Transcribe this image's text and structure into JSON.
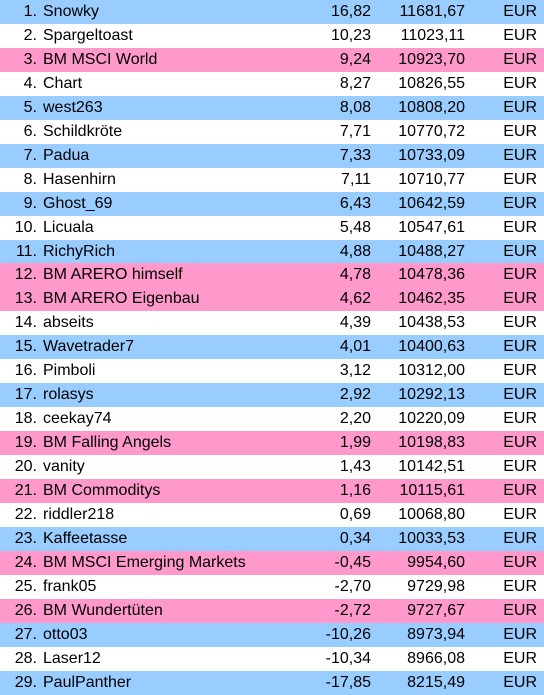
{
  "colors": {
    "blue": "#99CCFF",
    "white": "#FFFFFF",
    "pink": "#FF99CC"
  },
  "rows": [
    {
      "rank": "1.",
      "name": "Snowky",
      "pct": "16,82",
      "value": "11681,67",
      "currency": "EUR",
      "color": "blue"
    },
    {
      "rank": "2.",
      "name": "Spargeltoast",
      "pct": "10,23",
      "value": "11023,11",
      "currency": "EUR",
      "color": "white"
    },
    {
      "rank": "3.",
      "name": "BM MSCI World",
      "pct": "9,24",
      "value": "10923,70",
      "currency": "EUR",
      "color": "pink"
    },
    {
      "rank": "4.",
      "name": "Chart",
      "pct": "8,27",
      "value": "10826,55",
      "currency": "EUR",
      "color": "white"
    },
    {
      "rank": "5.",
      "name": "west263",
      "pct": "8,08",
      "value": "10808,20",
      "currency": "EUR",
      "color": "blue"
    },
    {
      "rank": "6.",
      "name": "Schildkröte",
      "pct": "7,71",
      "value": "10770,72",
      "currency": "EUR",
      "color": "white"
    },
    {
      "rank": "7.",
      "name": "Padua",
      "pct": "7,33",
      "value": "10733,09",
      "currency": "EUR",
      "color": "blue"
    },
    {
      "rank": "8.",
      "name": "Hasenhirn",
      "pct": "7,11",
      "value": "10710,77",
      "currency": "EUR",
      "color": "white"
    },
    {
      "rank": "9.",
      "name": "Ghost_69",
      "pct": "6,43",
      "value": "10642,59",
      "currency": "EUR",
      "color": "blue"
    },
    {
      "rank": "10.",
      "name": "Licuala",
      "pct": "5,48",
      "value": "10547,61",
      "currency": "EUR",
      "color": "white"
    },
    {
      "rank": "11.",
      "name": "RichyRich",
      "pct": "4,88",
      "value": "10488,27",
      "currency": "EUR",
      "color": "blue"
    },
    {
      "rank": "12.",
      "name": "BM ARERO himself",
      "pct": "4,78",
      "value": "10478,36",
      "currency": "EUR",
      "color": "pink"
    },
    {
      "rank": "13.",
      "name": "BM ARERO Eigenbau",
      "pct": "4,62",
      "value": "10462,35",
      "currency": "EUR",
      "color": "pink"
    },
    {
      "rank": "14.",
      "name": "abseits",
      "pct": "4,39",
      "value": "10438,53",
      "currency": "EUR",
      "color": "white"
    },
    {
      "rank": "15.",
      "name": "Wavetrader7",
      "pct": "4,01",
      "value": "10400,63",
      "currency": "EUR",
      "color": "blue"
    },
    {
      "rank": "16.",
      "name": "Pimboli",
      "pct": "3,12",
      "value": "10312,00",
      "currency": "EUR",
      "color": "white"
    },
    {
      "rank": "17.",
      "name": "rolasys",
      "pct": "2,92",
      "value": "10292,13",
      "currency": "EUR",
      "color": "blue"
    },
    {
      "rank": "18.",
      "name": "ceekay74",
      "pct": "2,20",
      "value": "10220,09",
      "currency": "EUR",
      "color": "white"
    },
    {
      "rank": "19.",
      "name": "BM Falling Angels",
      "pct": "1,99",
      "value": "10198,83",
      "currency": "EUR",
      "color": "pink"
    },
    {
      "rank": "20.",
      "name": "vanity",
      "pct": "1,43",
      "value": "10142,51",
      "currency": "EUR",
      "color": "white"
    },
    {
      "rank": "21.",
      "name": "BM Commoditys",
      "pct": "1,16",
      "value": "10115,61",
      "currency": "EUR",
      "color": "pink"
    },
    {
      "rank": "22.",
      "name": "riddler218",
      "pct": "0,69",
      "value": "10068,80",
      "currency": "EUR",
      "color": "white"
    },
    {
      "rank": "23.",
      "name": "Kaffeetasse",
      "pct": "0,34",
      "value": "10033,53",
      "currency": "EUR",
      "color": "blue"
    },
    {
      "rank": "24.",
      "name": "BM MSCI Emerging Markets",
      "pct": "-0,45",
      "value": "9954,60",
      "currency": "EUR",
      "color": "pink"
    },
    {
      "rank": "25.",
      "name": "frank05",
      "pct": "-2,70",
      "value": "9729,98",
      "currency": "EUR",
      "color": "white"
    },
    {
      "rank": "26.",
      "name": "BM Wundertüten",
      "pct": "-2,72",
      "value": "9727,67",
      "currency": "EUR",
      "color": "pink"
    },
    {
      "rank": "27.",
      "name": "otto03",
      "pct": "-10,26",
      "value": "8973,94",
      "currency": "EUR",
      "color": "blue"
    },
    {
      "rank": "28.",
      "name": "Laser12",
      "pct": "-10,34",
      "value": "8966,08",
      "currency": "EUR",
      "color": "white"
    },
    {
      "rank": "29.",
      "name": "PaulPanther",
      "pct": "-17,85",
      "value": "8215,49",
      "currency": "EUR",
      "color": "blue"
    }
  ]
}
